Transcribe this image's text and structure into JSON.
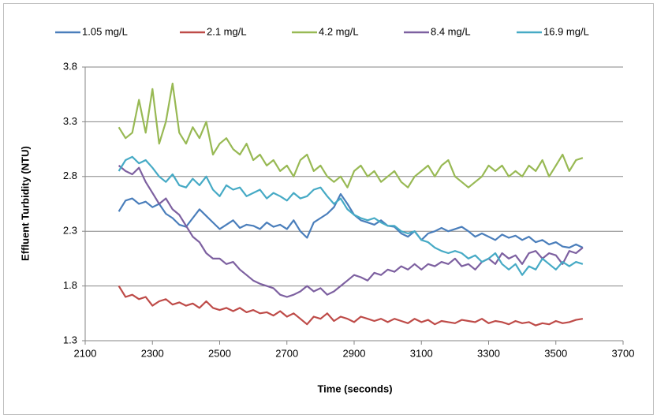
{
  "chart_data": {
    "type": "line",
    "x_label": "Time (seconds)",
    "y_label": "Effluent Turbidity (NTU)",
    "xlim": [
      2100,
      3700
    ],
    "xticks": [
      2100,
      2300,
      2500,
      2700,
      2900,
      3100,
      3300,
      3500,
      3700
    ],
    "ylim": [
      1.3,
      3.8
    ],
    "yticks": [
      1.3,
      1.8,
      2.3,
      2.8,
      3.3,
      3.8
    ],
    "grid": true,
    "legend": "top",
    "x": [
      2200,
      2220,
      2240,
      2260,
      2280,
      2300,
      2320,
      2340,
      2360,
      2380,
      2400,
      2420,
      2440,
      2460,
      2480,
      2500,
      2520,
      2540,
      2560,
      2580,
      2600,
      2620,
      2640,
      2660,
      2680,
      2700,
      2720,
      2740,
      2760,
      2780,
      2800,
      2820,
      2840,
      2860,
      2880,
      2900,
      2920,
      2940,
      2960,
      2980,
      3000,
      3020,
      3040,
      3060,
      3080,
      3100,
      3120,
      3140,
      3160,
      3180,
      3200,
      3220,
      3240,
      3260,
      3280,
      3300,
      3320,
      3340,
      3360,
      3380,
      3400,
      3420,
      3440,
      3460,
      3480,
      3500,
      3520,
      3540,
      3560,
      3580
    ],
    "series": [
      {
        "name": "1.05 mg/L",
        "color": "#4a7ebb",
        "values": [
          2.48,
          2.58,
          2.6,
          2.55,
          2.57,
          2.52,
          2.55,
          2.46,
          2.42,
          2.36,
          2.34,
          2.42,
          2.5,
          2.44,
          2.38,
          2.32,
          2.36,
          2.4,
          2.33,
          2.36,
          2.35,
          2.32,
          2.38,
          2.34,
          2.36,
          2.32,
          2.4,
          2.3,
          2.24,
          2.38,
          2.42,
          2.46,
          2.52,
          2.64,
          2.55,
          2.45,
          2.4,
          2.38,
          2.36,
          2.4,
          2.35,
          2.34,
          2.28,
          2.25,
          2.3,
          2.22,
          2.28,
          2.3,
          2.33,
          2.3,
          2.32,
          2.34,
          2.3,
          2.25,
          2.28,
          2.25,
          2.22,
          2.27,
          2.24,
          2.26,
          2.22,
          2.25,
          2.2,
          2.22,
          2.18,
          2.2,
          2.16,
          2.15,
          2.18,
          2.15
        ]
      },
      {
        "name": "2.1 mg/L",
        "color": "#be4b48",
        "values": [
          1.8,
          1.7,
          1.72,
          1.68,
          1.7,
          1.62,
          1.66,
          1.68,
          1.63,
          1.65,
          1.62,
          1.64,
          1.6,
          1.66,
          1.6,
          1.58,
          1.6,
          1.57,
          1.6,
          1.56,
          1.58,
          1.55,
          1.56,
          1.53,
          1.57,
          1.52,
          1.55,
          1.5,
          1.45,
          1.52,
          1.5,
          1.55,
          1.48,
          1.52,
          1.5,
          1.47,
          1.52,
          1.5,
          1.48,
          1.5,
          1.47,
          1.5,
          1.48,
          1.46,
          1.5,
          1.47,
          1.49,
          1.45,
          1.48,
          1.47,
          1.46,
          1.49,
          1.48,
          1.47,
          1.5,
          1.46,
          1.48,
          1.47,
          1.45,
          1.48,
          1.46,
          1.47,
          1.44,
          1.46,
          1.45,
          1.48,
          1.46,
          1.47,
          1.49,
          1.5
        ]
      },
      {
        "name": "4.2 mg/L",
        "color": "#98b954",
        "values": [
          3.25,
          3.15,
          3.2,
          3.5,
          3.2,
          3.6,
          3.1,
          3.3,
          3.65,
          3.2,
          3.1,
          3.25,
          3.15,
          3.3,
          3.0,
          3.1,
          3.15,
          3.05,
          3.0,
          3.1,
          2.95,
          3.0,
          2.9,
          2.95,
          2.85,
          2.9,
          2.8,
          2.95,
          3.0,
          2.85,
          2.9,
          2.8,
          2.75,
          2.8,
          2.7,
          2.85,
          2.9,
          2.8,
          2.85,
          2.75,
          2.8,
          2.85,
          2.75,
          2.7,
          2.8,
          2.85,
          2.9,
          2.8,
          2.9,
          2.95,
          2.8,
          2.75,
          2.7,
          2.75,
          2.8,
          2.9,
          2.85,
          2.9,
          2.8,
          2.85,
          2.8,
          2.9,
          2.85,
          2.95,
          2.8,
          2.9,
          3.0,
          2.85,
          2.95,
          2.97
        ]
      },
      {
        "name": "8.4 mg/L",
        "color": "#7d60a0",
        "values": [
          2.9,
          2.85,
          2.82,
          2.88,
          2.75,
          2.65,
          2.55,
          2.6,
          2.5,
          2.45,
          2.35,
          2.25,
          2.2,
          2.1,
          2.05,
          2.05,
          2.0,
          2.02,
          1.95,
          1.9,
          1.85,
          1.82,
          1.8,
          1.78,
          1.72,
          1.7,
          1.72,
          1.75,
          1.8,
          1.75,
          1.78,
          1.72,
          1.75,
          1.8,
          1.85,
          1.9,
          1.88,
          1.85,
          1.92,
          1.9,
          1.95,
          1.93,
          1.98,
          1.95,
          2.0,
          1.95,
          2.0,
          1.98,
          2.02,
          2.0,
          2.05,
          1.98,
          2.0,
          1.95,
          2.02,
          2.05,
          2.0,
          2.1,
          2.05,
          2.08,
          2.0,
          2.1,
          2.12,
          2.05,
          2.1,
          2.08,
          2.0,
          2.12,
          2.1,
          2.15
        ]
      },
      {
        "name": "16.9 mg/L",
        "color": "#46aac5",
        "values": [
          2.85,
          2.95,
          2.98,
          2.92,
          2.95,
          2.88,
          2.8,
          2.75,
          2.82,
          2.72,
          2.7,
          2.78,
          2.72,
          2.8,
          2.68,
          2.62,
          2.72,
          2.68,
          2.7,
          2.62,
          2.65,
          2.68,
          2.6,
          2.65,
          2.62,
          2.58,
          2.65,
          2.6,
          2.62,
          2.68,
          2.7,
          2.62,
          2.55,
          2.6,
          2.5,
          2.45,
          2.42,
          2.4,
          2.42,
          2.38,
          2.35,
          2.35,
          2.3,
          2.28,
          2.3,
          2.22,
          2.2,
          2.15,
          2.12,
          2.1,
          2.12,
          2.1,
          2.05,
          2.08,
          2.02,
          2.05,
          2.1,
          2.0,
          1.95,
          2.0,
          1.9,
          1.98,
          1.95,
          2.05,
          2.0,
          1.95,
          2.02,
          1.98,
          2.02,
          2.0
        ]
      }
    ]
  }
}
